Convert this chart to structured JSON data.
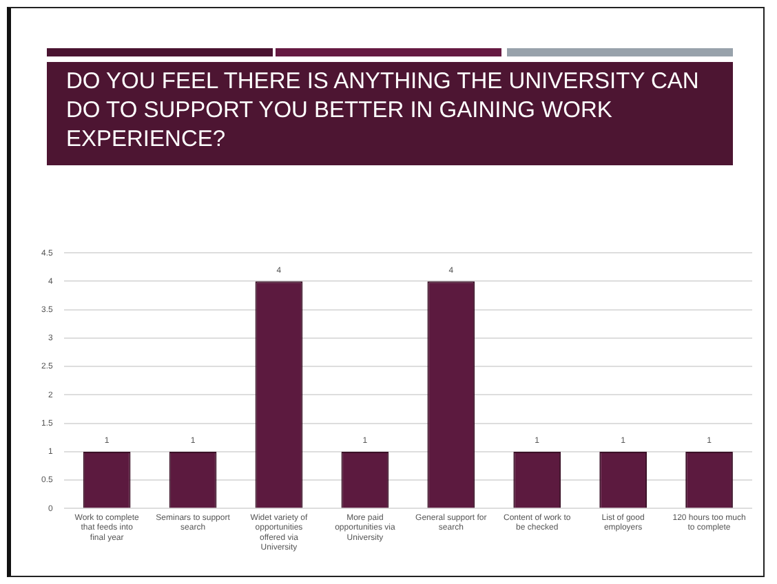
{
  "chart_data": {
    "type": "bar",
    "title": "DO YOU FEEL THERE IS ANYTHING THE UNIVERSITY CAN DO TO SUPPORT YOU BETTER IN GAINING WORK EXPERIENCE?",
    "categories": [
      "Work to complete that feeds into final year",
      "Seminars to support search",
      "Widet variety of opportunities offered via University",
      "More paid opportunities via University",
      "General support for search",
      "Content of work to be checked",
      "List of good employers",
      "120 hours too much to complete"
    ],
    "values": [
      1,
      1,
      4,
      1,
      4,
      1,
      1,
      1
    ],
    "color": "#5c1a3f",
    "ylim": [
      0,
      4.5
    ],
    "yticks": [
      0,
      0.5,
      1,
      1.5,
      2,
      2.5,
      3,
      3.5,
      4,
      4.5
    ],
    "grid": "y",
    "data_labels": true
  }
}
